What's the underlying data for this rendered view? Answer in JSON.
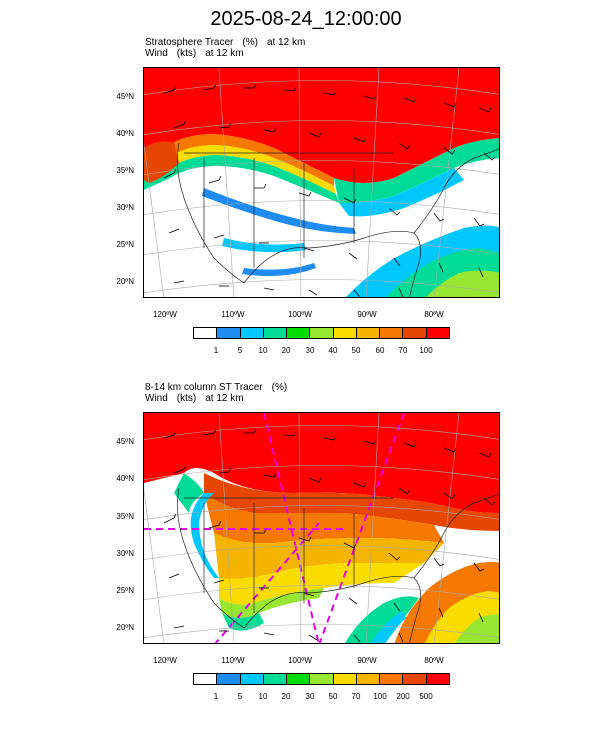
{
  "title": "2025-08-24_12:00:00",
  "panels": [
    {
      "field_label": "Stratosphere Tracer",
      "field_units": "(%)",
      "field_level": "at  12 km",
      "wind_label": "Wind",
      "wind_units": "(kts)",
      "wind_level": "at  12 km",
      "lat_labels": [
        "45ºN",
        "40ºN",
        "35ºN",
        "30ºN",
        "25ºN",
        "20ºN"
      ],
      "lon_labels": [
        "120ºW",
        "110ºW",
        "100ºW",
        "90ºW",
        "80ºW"
      ],
      "colorbar_labels": [
        "1",
        "5",
        "10",
        "20",
        "30",
        "40",
        "50",
        "60",
        "70",
        "100"
      ]
    },
    {
      "field_label": "8-14 km column ST Tracer",
      "field_units": "(%)",
      "field_level": "",
      "wind_label": "Wind",
      "wind_units": "(kts)",
      "wind_level": "at  12 km",
      "lat_labels": [
        "45ºN",
        "40ºN",
        "35ºN",
        "30ºN",
        "25ºN",
        "20ºN"
      ],
      "lon_labels": [
        "120ºW",
        "110ºW",
        "100ºW",
        "90ºW",
        "80ºW"
      ],
      "colorbar_labels": [
        "1",
        "5",
        "10",
        "20",
        "30",
        "50",
        "70",
        "100",
        "200",
        "500"
      ]
    }
  ],
  "colors": [
    "#ffffff",
    "#1e8cf0",
    "#00c8ff",
    "#00dc96",
    "#00dc00",
    "#96e632",
    "#fadc00",
    "#f5b400",
    "#f57800",
    "#e64600",
    "#ff0000"
  ]
}
